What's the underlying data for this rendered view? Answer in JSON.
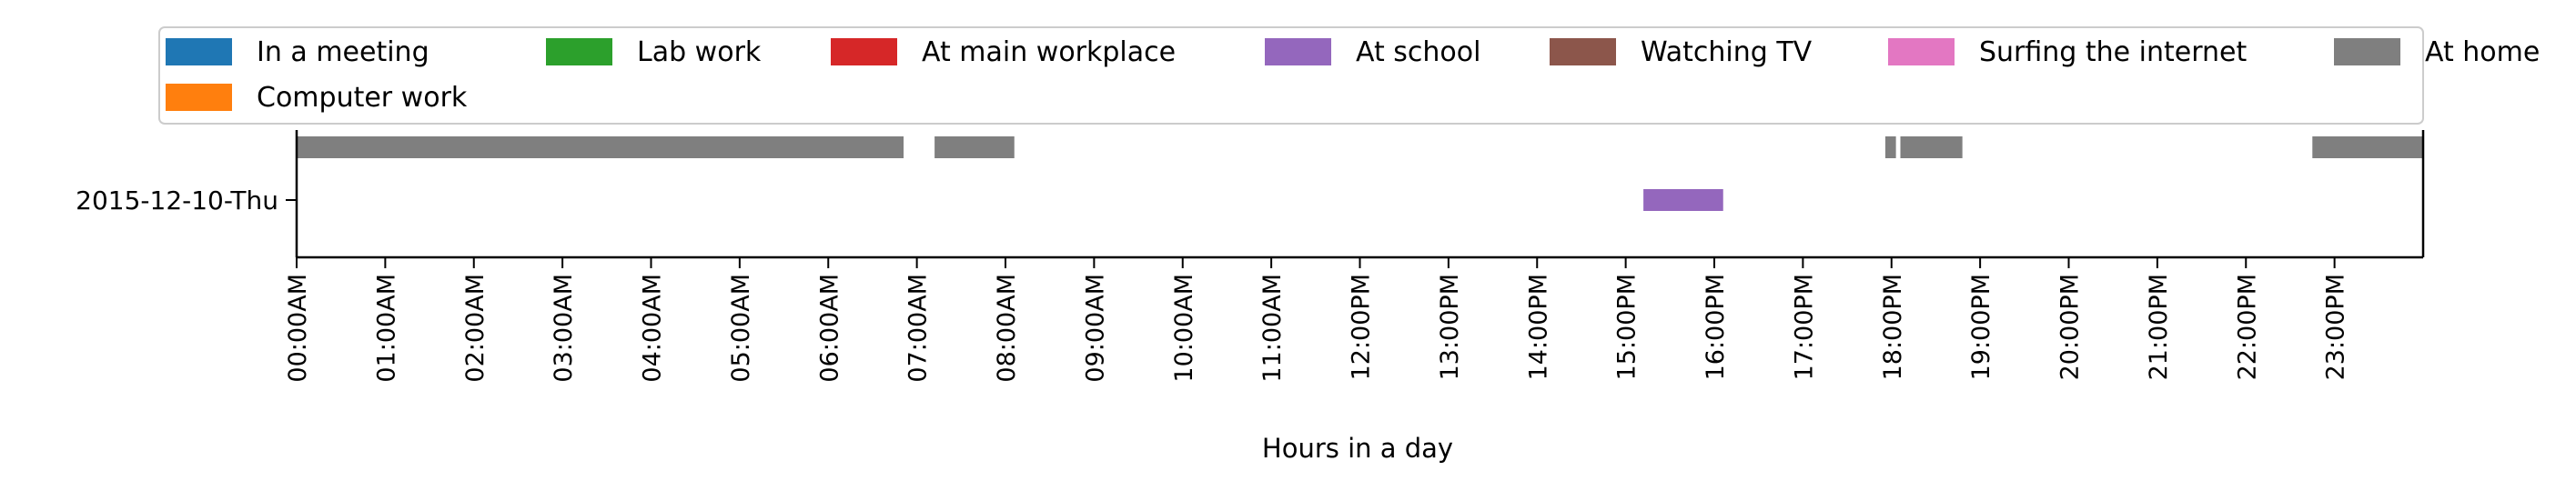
{
  "chart_data": {
    "type": "timeline",
    "xlabel": "Hours in a day",
    "xlim": [
      0,
      24
    ],
    "x_ticks": [
      {
        "value": 0,
        "label": "00:00AM"
      },
      {
        "value": 1,
        "label": "01:00AM"
      },
      {
        "value": 2,
        "label": "02:00AM"
      },
      {
        "value": 3,
        "label": "03:00AM"
      },
      {
        "value": 4,
        "label": "04:00AM"
      },
      {
        "value": 5,
        "label": "05:00AM"
      },
      {
        "value": 6,
        "label": "06:00AM"
      },
      {
        "value": 7,
        "label": "07:00AM"
      },
      {
        "value": 8,
        "label": "08:00AM"
      },
      {
        "value": 9,
        "label": "09:00AM"
      },
      {
        "value": 10,
        "label": "10:00AM"
      },
      {
        "value": 11,
        "label": "11:00AM"
      },
      {
        "value": 12,
        "label": "12:00PM"
      },
      {
        "value": 13,
        "label": "13:00PM"
      },
      {
        "value": 14,
        "label": "14:00PM"
      },
      {
        "value": 15,
        "label": "15:00PM"
      },
      {
        "value": 16,
        "label": "16:00PM"
      },
      {
        "value": 17,
        "label": "17:00PM"
      },
      {
        "value": 18,
        "label": "18:00PM"
      },
      {
        "value": 19,
        "label": "19:00PM"
      },
      {
        "value": 20,
        "label": "20:00PM"
      },
      {
        "value": 21,
        "label": "21:00PM"
      },
      {
        "value": 22,
        "label": "22:00PM"
      },
      {
        "value": 23,
        "label": "23:00PM"
      }
    ],
    "y_categories": [
      "2015-12-10-Thu"
    ],
    "legend": {
      "placement": "top",
      "entries": [
        {
          "label": "In a meeting",
          "color": "#1f77b4"
        },
        {
          "label": "Lab work",
          "color": "#2ca02c"
        },
        {
          "label": "At main workplace",
          "color": "#d62728"
        },
        {
          "label": "At school",
          "color": "#9467bd"
        },
        {
          "label": "Watching TV",
          "color": "#8c564b"
        },
        {
          "label": "Surfing the internet",
          "color": "#e377c2"
        },
        {
          "label": "At home",
          "color": "#7f7f7f"
        },
        {
          "label": "Computer work",
          "color": "#ff7f0e"
        }
      ]
    },
    "segments": [
      {
        "category": "At home",
        "row": "2015-12-10-Thu",
        "lane": 1,
        "start": 0.0,
        "end": 6.85
      },
      {
        "category": "At home",
        "row": "2015-12-10-Thu",
        "lane": 1,
        "start": 7.2,
        "end": 8.1
      },
      {
        "category": "At home",
        "row": "2015-12-10-Thu",
        "lane": 1,
        "start": 17.93,
        "end": 18.05
      },
      {
        "category": "At home",
        "row": "2015-12-10-Thu",
        "lane": 1,
        "start": 18.1,
        "end": 18.8
      },
      {
        "category": "At home",
        "row": "2015-12-10-Thu",
        "lane": 1,
        "start": 22.75,
        "end": 24.0
      },
      {
        "category": "At school",
        "row": "2015-12-10-Thu",
        "lane": 0,
        "start": 15.2,
        "end": 16.1
      }
    ]
  }
}
